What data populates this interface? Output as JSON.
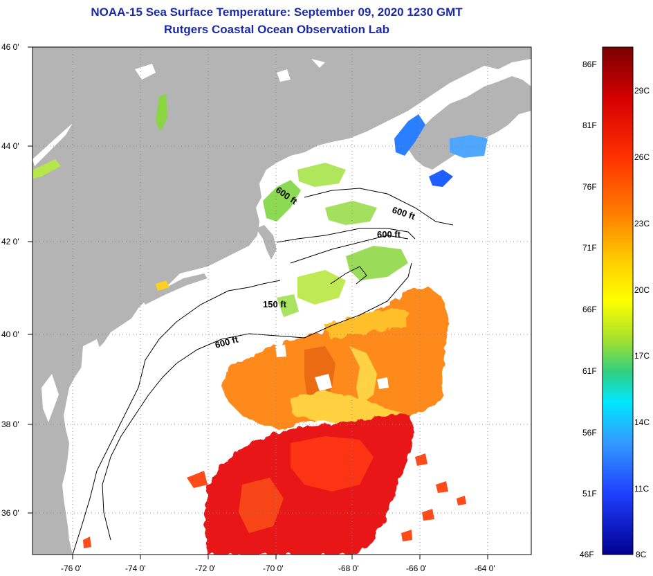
{
  "title": "NOAA-15 Sea Surface Temperature:  September 09, 2020 1230 GMT",
  "subtitle": "Rutgers Coastal Ocean Observation Lab",
  "lat_ticks": [
    "46 0'",
    "44 0'",
    "42 0'",
    "40 0'",
    "38 0'",
    "36 0'"
  ],
  "lon_ticks": [
    "-76 0'",
    "-74 0'",
    "-72 0'",
    "-70 0'",
    "-68 0'",
    "-66 0'",
    "-64 0'"
  ],
  "contour_labels": [
    "600 ft",
    "600 ft",
    "600 ft",
    "150 ft",
    "600 ft"
  ],
  "colorbar": {
    "fahrenheit_labels": [
      "86F",
      "81F",
      "76F",
      "71F",
      "66F",
      "61F",
      "56F",
      "51F",
      "46F"
    ],
    "celsius_labels": [
      "29C",
      "26C",
      "23C",
      "20C",
      "17C",
      "14C",
      "11C",
      "8C"
    ],
    "colors": [
      "#7a0000",
      "#d40000",
      "#ff3300",
      "#ff7f00",
      "#ffbf00",
      "#ffff00",
      "#9fe030",
      "#30d080",
      "#00e0ff",
      "#3399ff",
      "#1f3fff",
      "#0000aa"
    ]
  },
  "colors": {
    "land": "#b4b4b4",
    "ocean_missing": "#ffffff",
    "title": "#1a2aa8"
  }
}
